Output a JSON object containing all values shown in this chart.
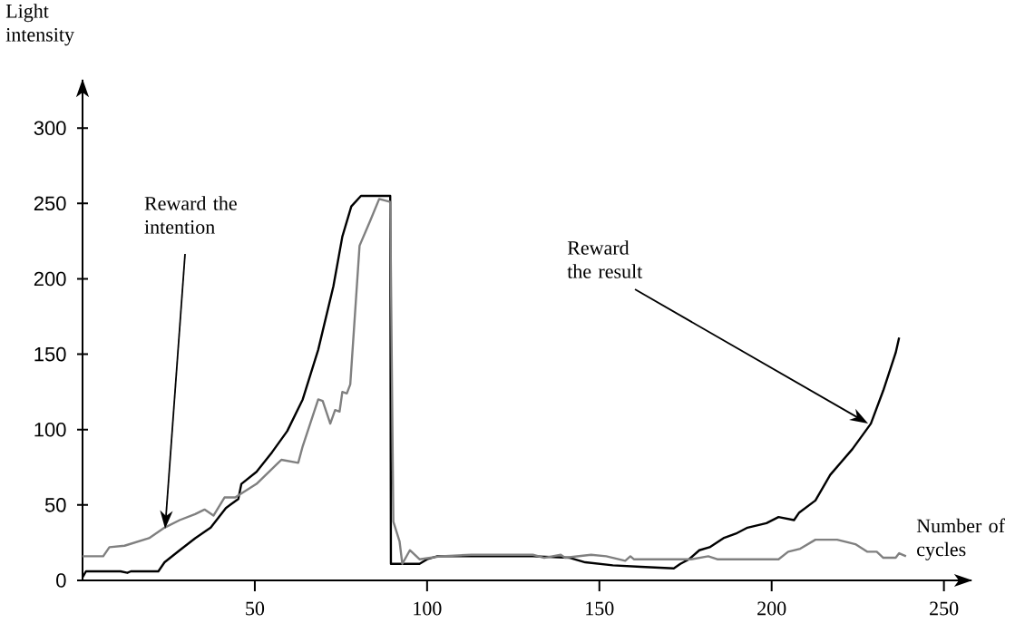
{
  "chart_data": {
    "type": "line",
    "xlabel": "Number of cycles",
    "ylabel": "Light intensity",
    "xlim": [
      0,
      258
    ],
    "ylim": [
      0,
      332
    ],
    "xticks": [
      50,
      100,
      150,
      200,
      250
    ],
    "yticks": [
      0,
      50,
      100,
      150,
      200,
      250,
      300
    ],
    "series": [
      {
        "color": "#000000",
        "x": [
          0,
          1,
          11,
          13,
          14,
          22,
          23.8,
          28.2,
          32.7,
          37.2,
          41.6,
          45.2,
          46.1,
          50.5,
          55,
          59.4,
          63.9,
          68.4,
          72.8,
          75.4,
          78,
          80.8,
          89.3,
          89.5,
          97.8,
          100,
          103,
          125,
          130.7,
          141.4,
          145.9,
          153.9,
          162,
          171.6,
          173.5,
          176,
          179,
          182,
          186,
          189.6,
          193,
          198.5,
          202,
          206.5,
          208,
          212.7,
          217,
          223.4,
          228.8,
          232.4,
          234,
          236,
          237
        ],
        "values": [
          2,
          6,
          6,
          5,
          6,
          6,
          12,
          20,
          28,
          35,
          48,
          54,
          64,
          72,
          85,
          99,
          120,
          153,
          195,
          228,
          248,
          255,
          255,
          11,
          11,
          14,
          16,
          16,
          16,
          15,
          12,
          10,
          9,
          8,
          11,
          14,
          20,
          22,
          28,
          31,
          35,
          38,
          42,
          40,
          45,
          53,
          70,
          87,
          104,
          126,
          137,
          151,
          161
        ]
      },
      {
        "color": "#808080",
        "x": [
          0,
          6,
          7.8,
          12.2,
          19.3,
          23.8,
          28.2,
          32.7,
          35.4,
          38,
          41.2,
          44.3,
          50.5,
          57.7,
          62.6,
          63.9,
          68.4,
          69.7,
          71.9,
          73.3,
          74.6,
          75.4,
          76.7,
          77.7,
          80.4,
          83.4,
          86.1,
          89.3,
          90.2,
          92,
          92.8,
          95,
          97.8,
          101,
          104,
          112.8,
          130.7,
          134,
          138.8,
          140,
          147.6,
          152,
          157.5,
          159,
          160,
          176.6,
          181.6,
          184.2,
          202,
          204.8,
          208.3,
          212.7,
          219,
          222.5,
          224.3,
          227.8,
          230.5,
          232.4,
          236,
          237,
          239
        ],
        "values": [
          16,
          16,
          22,
          23,
          28,
          35,
          40,
          44,
          47,
          43,
          55,
          55,
          64,
          80,
          78,
          89,
          120,
          119,
          104,
          113,
          112,
          125,
          124,
          130,
          222,
          238,
          253,
          251,
          39,
          26,
          11,
          20,
          14,
          15,
          16,
          17,
          17,
          15,
          17,
          15,
          17,
          16,
          13,
          16,
          14,
          14,
          16,
          14,
          14,
          19,
          21,
          27,
          27,
          25,
          24,
          19,
          19,
          15,
          15,
          18,
          16
        ]
      }
    ],
    "annotations": [
      "Reward the intention",
      "Reward the result"
    ]
  }
}
